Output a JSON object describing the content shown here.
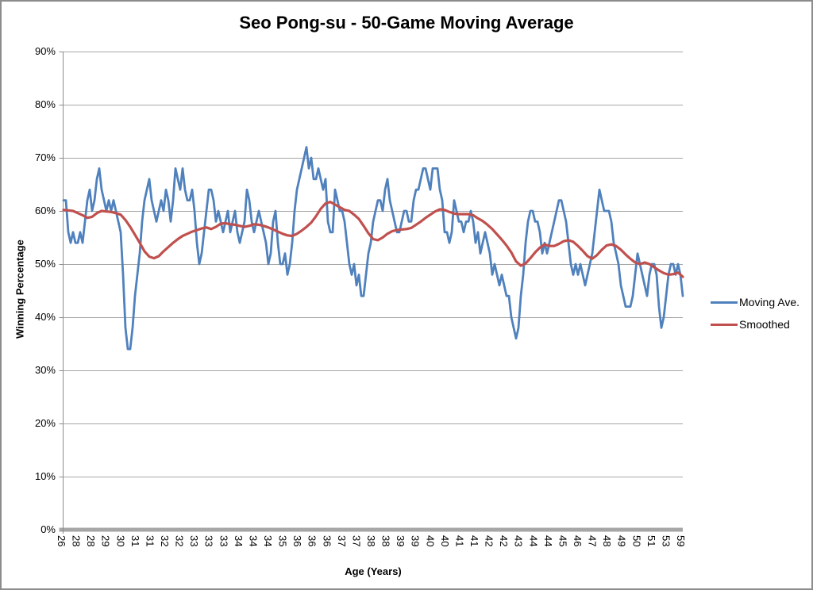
{
  "chart_data": {
    "type": "line",
    "title": "Seo Pong-su - 50-Game Moving Average",
    "xlabel": "Age (Years)",
    "ylabel": "Winning Percentage",
    "ylim": [
      0,
      90
    ],
    "grid": true,
    "y_tick_labels": [
      "90%",
      "80%",
      "70%",
      "60%",
      "50%",
      "40%",
      "30%",
      "20%",
      "10%",
      "0%"
    ],
    "x_tick_labels": [
      "26",
      "28",
      "28",
      "29",
      "30",
      "31",
      "31",
      "32",
      "32",
      "33",
      "33",
      "33",
      "34",
      "34",
      "34",
      "35",
      "36",
      "36",
      "36",
      "37",
      "37",
      "38",
      "38",
      "39",
      "39",
      "40",
      "40",
      "41",
      "41",
      "42",
      "42",
      "43",
      "44",
      "44",
      "45",
      "46",
      "47",
      "48",
      "49",
      "50",
      "51",
      "53",
      "59"
    ],
    "legend_position": "right",
    "series": [
      {
        "name": "Moving Ave.",
        "color": "#4F81BD",
        "unit": "percent",
        "values": [
          62,
          62,
          56,
          54,
          56,
          54,
          54,
          56,
          54,
          58,
          62,
          64,
          60,
          62,
          66,
          68,
          64,
          62,
          60,
          62,
          60,
          62,
          60,
          58,
          56,
          48,
          38,
          34,
          34,
          38,
          44,
          48,
          52,
          58,
          62,
          64,
          66,
          62,
          60,
          58,
          60,
          62,
          60,
          64,
          62,
          58,
          62,
          68,
          66,
          64,
          68,
          64,
          62,
          62,
          64,
          60,
          54,
          50,
          52,
          56,
          60,
          64,
          64,
          62,
          58,
          60,
          58,
          56,
          58,
          60,
          56,
          58,
          60,
          56,
          54,
          56,
          58,
          64,
          62,
          58,
          56,
          58,
          60,
          58,
          56,
          54,
          50,
          52,
          58,
          60,
          54,
          50,
          50,
          52,
          48,
          50,
          54,
          60,
          64,
          66,
          68,
          70,
          72,
          68,
          70,
          66,
          66,
          68,
          66,
          64,
          66,
          58,
          56,
          56,
          64,
          62,
          60,
          60,
          58,
          54,
          50,
          48,
          50,
          46,
          48,
          44,
          44,
          48,
          52,
          54,
          58,
          60,
          62,
          62,
          60,
          64,
          66,
          62,
          60,
          58,
          56,
          56,
          58,
          60,
          60,
          58,
          58,
          62,
          64,
          64,
          66,
          68,
          68,
          66,
          64,
          68,
          68,
          68,
          64,
          62,
          56,
          56,
          54,
          56,
          62,
          60,
          58,
          58,
          56,
          58,
          58,
          60,
          58,
          54,
          56,
          52,
          54,
          56,
          54,
          52,
          48,
          50,
          48,
          46,
          48,
          46,
          44,
          44,
          40,
          38,
          36,
          38,
          44,
          48,
          54,
          58,
          60,
          60,
          58,
          58,
          56,
          52,
          54,
          52,
          54,
          56,
          58,
          60,
          62,
          62,
          60,
          58,
          54,
          50,
          48,
          50,
          48,
          50,
          48,
          46,
          48,
          50,
          52,
          56,
          60,
          64,
          62,
          60,
          60,
          60,
          58,
          54,
          52,
          50,
          46,
          44,
          42,
          42,
          42,
          44,
          48,
          52,
          50,
          48,
          46,
          44,
          48,
          50,
          50,
          48,
          42,
          38,
          40,
          44,
          48,
          50,
          50,
          48,
          50,
          48,
          44
        ]
      },
      {
        "name": "Smoothed",
        "color": "#C0504D",
        "unit": "percent",
        "values": [
          60.2,
          60.1,
          60.0,
          59.6,
          59.2,
          58.7,
          58.9,
          59.6,
          60.0,
          59.9,
          59.8,
          59.6,
          59.3,
          58.3,
          57.0,
          55.5,
          54.0,
          52.4,
          51.4,
          51.1,
          51.5,
          52.4,
          53.2,
          54.0,
          54.7,
          55.3,
          55.7,
          56.1,
          56.4,
          56.7,
          56.9,
          56.6,
          57.0,
          57.6,
          57.7,
          57.5,
          57.4,
          57.2,
          57.0,
          57.2,
          57.5,
          57.4,
          57.2,
          56.9,
          56.5,
          56.1,
          55.7,
          55.4,
          55.3,
          55.7,
          56.3,
          57.0,
          57.8,
          59.0,
          60.4,
          61.4,
          61.7,
          61.2,
          60.7,
          60.2,
          60.0,
          59.3,
          58.5,
          57.2,
          55.8,
          54.7,
          54.5,
          55.0,
          55.7,
          56.2,
          56.4,
          56.5,
          56.6,
          56.8,
          57.4,
          58.0,
          58.7,
          59.3,
          59.9,
          60.3,
          60.2,
          59.8,
          59.5,
          59.4,
          59.4,
          59.4,
          59.2,
          58.6,
          58.1,
          57.4,
          56.6,
          55.6,
          54.6,
          53.5,
          52.2,
          50.5,
          49.7,
          50.1,
          51.1,
          52.2,
          53.1,
          53.7,
          53.4,
          53.4,
          53.8,
          54.3,
          54.5,
          54.2,
          53.4,
          52.5,
          51.5,
          51.0,
          51.7,
          52.7,
          53.5,
          53.7,
          53.4,
          52.7,
          51.8,
          51.0,
          50.3,
          50.0,
          50.3,
          50.0,
          49.4,
          48.8,
          48.3,
          48.0,
          48.1,
          48.4,
          47.6
        ]
      }
    ],
    "colors": {
      "gridline": "#A6A6A6",
      "axis": "#8C8C8C",
      "zero_line": "#A6A6A6",
      "text": "#000000",
      "border": "#8C8C8C"
    }
  }
}
